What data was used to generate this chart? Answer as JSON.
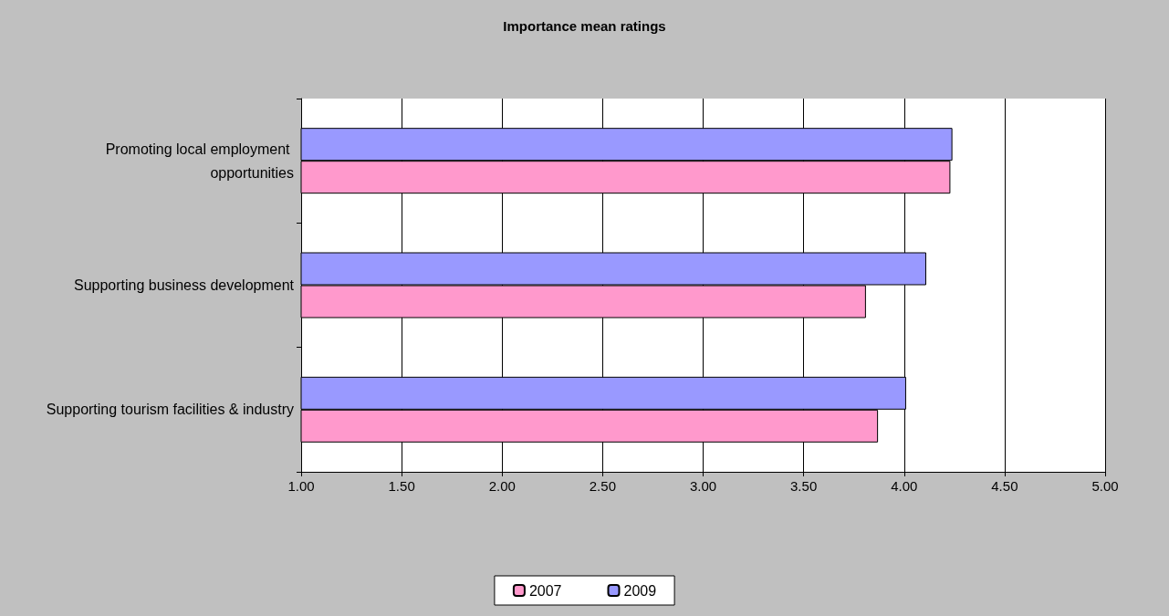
{
  "chart_data": {
    "type": "bar",
    "orientation": "horizontal",
    "title": "Importance mean ratings",
    "categories": [
      "Promoting local employment opportunities",
      "Supporting business development",
      "Supporting tourism facilities & industry"
    ],
    "series": [
      {
        "name": "2007",
        "color": "#ff99cc",
        "values": [
          4.23,
          3.81,
          3.87
        ]
      },
      {
        "name": "2009",
        "color": "#9999ff",
        "values": [
          4.24,
          4.11,
          4.01
        ]
      }
    ],
    "xlim": [
      1,
      5
    ],
    "xticks": [
      {
        "value": 1,
        "label": "1.00"
      },
      {
        "value": 1.5,
        "label": "1.50"
      },
      {
        "value": 2,
        "label": "2.00"
      },
      {
        "value": 2.5,
        "label": "2.50"
      },
      {
        "value": 3,
        "label": "3.00"
      },
      {
        "value": 3.5,
        "label": "3.50"
      },
      {
        "value": 4,
        "label": "4.00"
      },
      {
        "value": 4.5,
        "label": "4.50"
      },
      {
        "value": 5,
        "label": "5.00"
      }
    ],
    "grid": "x",
    "legend": "bottom"
  }
}
